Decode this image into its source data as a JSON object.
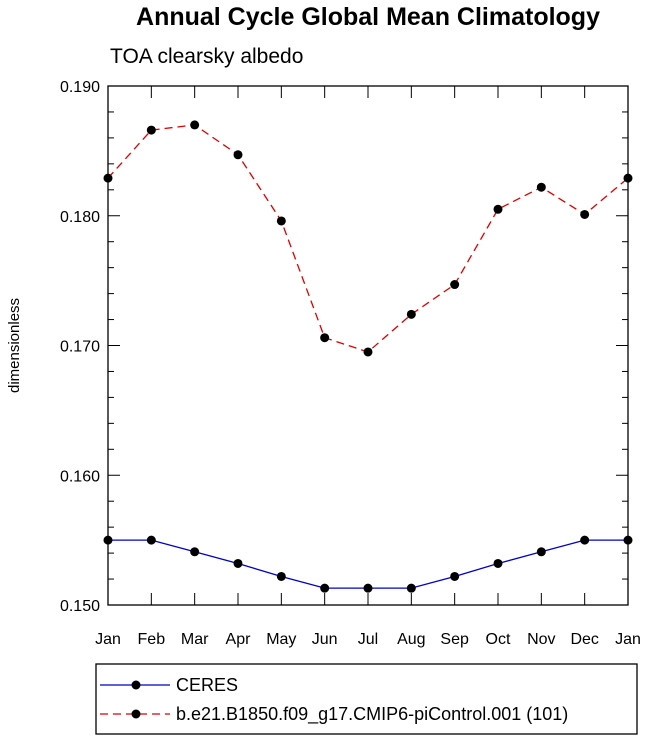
{
  "chart_data": {
    "type": "line",
    "title": "Annual Cycle Global Mean Climatology",
    "subtitle": "TOA clearsky albedo",
    "xlabel": "",
    "ylabel": "dimensionless",
    "categories": [
      "Jan",
      "Feb",
      "Mar",
      "Apr",
      "May",
      "Jun",
      "Jul",
      "Aug",
      "Sep",
      "Oct",
      "Nov",
      "Dec",
      "Jan"
    ],
    "ylim": [
      0.15,
      0.19
    ],
    "yticks": [
      0.15,
      0.16,
      0.17,
      0.18,
      0.19
    ],
    "ytick_labels": [
      "0.150",
      "0.160",
      "0.170",
      "0.180",
      "0.190"
    ],
    "grid": false,
    "legend_position": "bottom",
    "series": [
      {
        "name": "CERES",
        "color": "#0000cc",
        "dash": "solid",
        "values": [
          0.155,
          0.155,
          0.1541,
          0.1532,
          0.1522,
          0.1513,
          0.1513,
          0.1513,
          0.1522,
          0.1532,
          0.1541,
          0.155,
          0.155
        ]
      },
      {
        "name": "b.e21.B1850.f09_g17.CMIP6-piControl.001 (101)",
        "color": "#dd0000",
        "dash": "dashed",
        "values": [
          0.1829,
          0.1866,
          0.187,
          0.1847,
          0.1796,
          0.1706,
          0.1695,
          0.1724,
          0.1747,
          0.1805,
          0.1822,
          0.1801,
          0.1829
        ]
      }
    ]
  }
}
